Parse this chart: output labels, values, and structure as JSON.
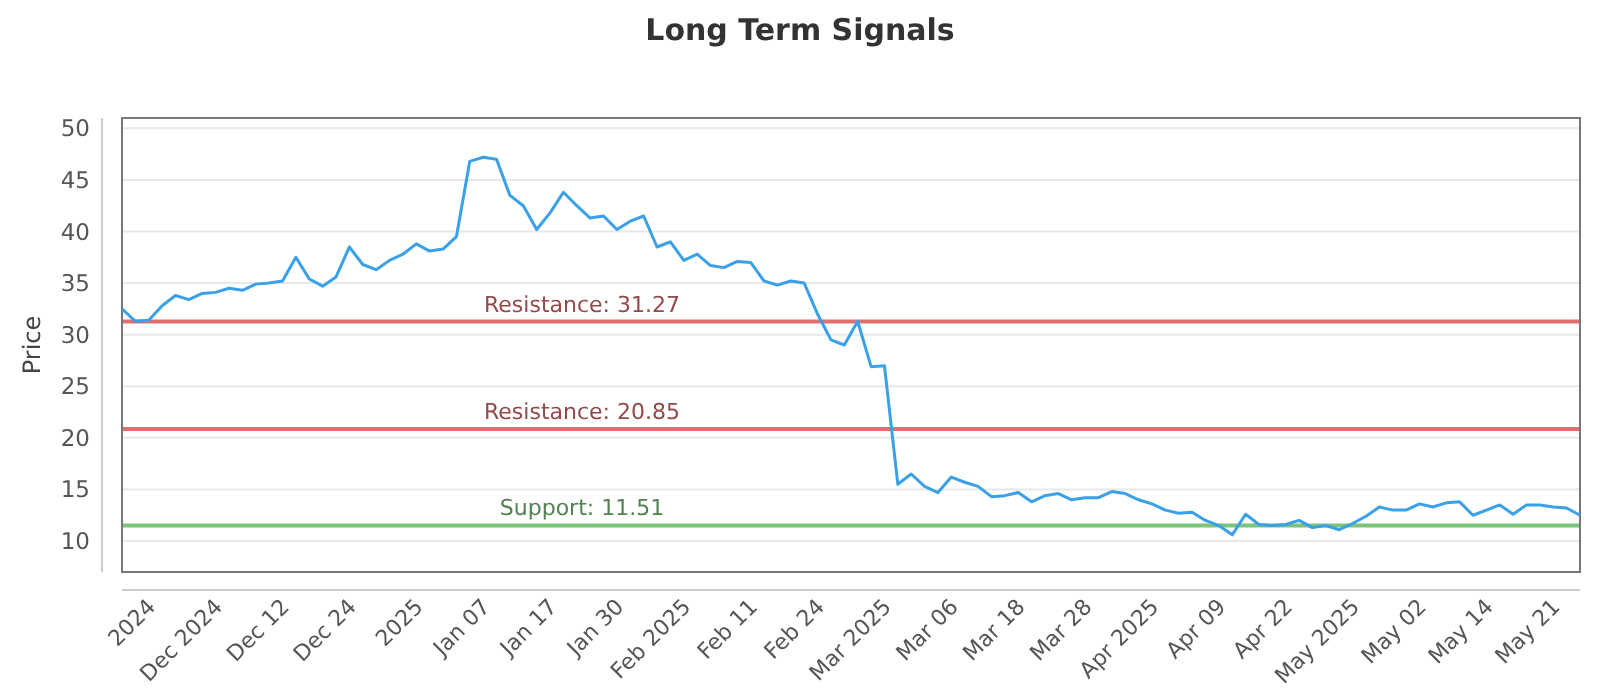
{
  "chart_data": {
    "type": "line",
    "title": "Long Term Signals",
    "ylabel": "Price",
    "categories": [
      null,
      null,
      "2024",
      null,
      null,
      null,
      null,
      "Dec 2024",
      null,
      null,
      null,
      null,
      "Dec 12",
      null,
      null,
      null,
      null,
      "Dec 24",
      null,
      null,
      null,
      null,
      "2025",
      null,
      null,
      null,
      null,
      "Jan 07",
      null,
      null,
      null,
      null,
      "Jan 17",
      null,
      null,
      null,
      null,
      "Jan 30",
      null,
      null,
      null,
      null,
      "Feb 2025",
      null,
      null,
      null,
      null,
      "Feb 11",
      null,
      null,
      null,
      null,
      "Feb 24",
      null,
      null,
      null,
      null,
      "Mar 2025",
      null,
      null,
      null,
      null,
      "Mar 06",
      null,
      null,
      null,
      null,
      "Mar 18",
      null,
      null,
      null,
      null,
      "Mar 28",
      null,
      null,
      null,
      null,
      "Apr 2025",
      null,
      null,
      null,
      null,
      "Apr 09",
      null,
      null,
      null,
      null,
      "Apr 22",
      null,
      null,
      null,
      null,
      "May 2025",
      null,
      null,
      null,
      null,
      "May 02",
      null,
      null,
      null,
      null,
      "May 14",
      null,
      null,
      null,
      null,
      "May 21",
      null,
      null
    ],
    "series": [
      {
        "color": "#3aa0e8",
        "values": [
          32.5,
          31.3,
          31.4,
          32.8,
          33.8,
          33.4,
          34,
          34.1,
          34.5,
          34.3,
          34.9,
          35,
          35.2,
          37.5,
          35.4,
          34.7,
          35.6,
          38.5,
          36.8,
          36.3,
          37.2,
          37.8,
          38.8,
          38.1,
          38.3,
          39.5,
          46.8,
          47.2,
          47,
          43.5,
          42.5,
          40.2,
          41.8,
          43.8,
          42.5,
          41.3,
          41.5,
          40.2,
          41,
          41.5,
          38.5,
          39,
          37.2,
          37.8,
          36.7,
          36.5,
          37.1,
          37,
          35.2,
          34.8,
          35.2,
          35,
          32,
          29.5,
          29,
          31.3,
          26.9,
          27,
          15.5,
          16.5,
          15.3,
          14.7,
          16.2,
          15.7,
          15.3,
          14.3,
          14.4,
          14.7,
          13.8,
          14.4,
          14.6,
          14,
          14.2,
          14.2,
          14.8,
          14.6,
          14,
          13.6,
          13,
          12.7,
          12.8,
          12,
          11.5,
          10.6,
          12.6,
          11.6,
          11.5,
          11.6,
          12,
          11.3,
          11.5,
          11.1,
          11.7,
          12.4,
          13.3,
          13,
          13,
          13.6,
          13.3,
          13.7,
          13.8,
          12.5,
          13,
          13.5,
          12.6,
          13.5,
          13.5,
          13.3,
          13.2,
          12.5
        ]
      }
    ],
    "ylim": [
      7,
      51
    ],
    "yticks": [
      10,
      15,
      20,
      25,
      30,
      35,
      40,
      45,
      50
    ],
    "grid": "y",
    "marker": "none",
    "line_style": "solid",
    "ref_lines": [
      {
        "axis": "y",
        "value": 31.27,
        "label": "Resistance: 31.27",
        "color": "#e07070"
      },
      {
        "axis": "y",
        "value": 20.85,
        "label": "Resistance: 20.85",
        "color": "#e07070"
      },
      {
        "axis": "y",
        "value": 11.51,
        "label": "Support: 11.51",
        "color": "#7cc47c"
      }
    ]
  }
}
